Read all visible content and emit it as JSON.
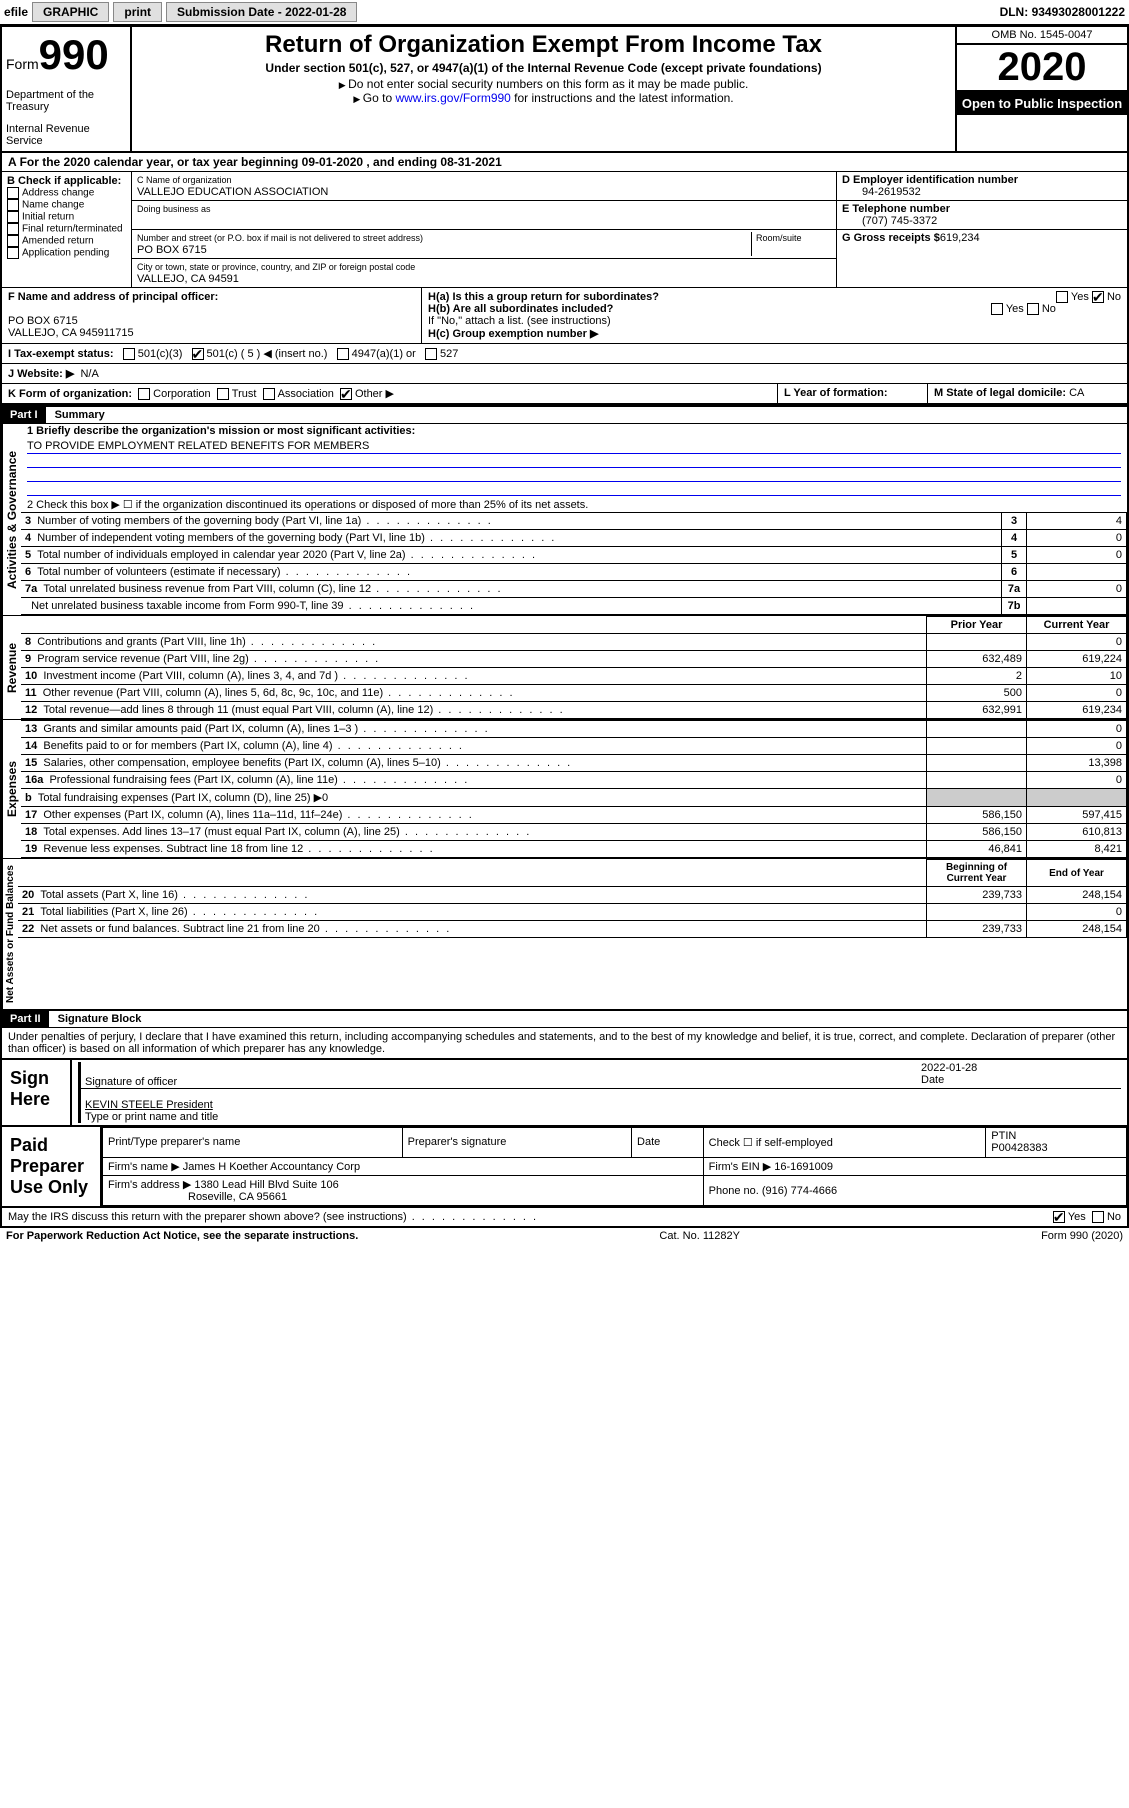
{
  "topbar": {
    "efile": "efile",
    "graphic": "GRAPHIC",
    "print": "print",
    "subdate_lbl": "Submission Date - ",
    "subdate": "2022-01-28",
    "dln_lbl": "DLN: ",
    "dln": "93493028001222"
  },
  "header": {
    "form": "Form",
    "num": "990",
    "dept": "Department of the Treasury",
    "irs": "Internal Revenue Service",
    "title": "Return of Organization Exempt From Income Tax",
    "sub": "Under section 501(c), 527, or 4947(a)(1) of the Internal Revenue Code (except private foundations)",
    "note1": "Do not enter social security numbers on this form as it may be made public.",
    "note2_pre": "Go to ",
    "note2_link": "www.irs.gov/Form990",
    "note2_post": " for instructions and the latest information.",
    "omb": "OMB No. 1545-0047",
    "year": "2020",
    "public": "Open to Public Inspection"
  },
  "period": {
    "text": "For the 2020 calendar year, or tax year beginning 09-01-2020    , and ending 08-31-2021"
  },
  "boxB": {
    "hdr": "B Check if applicable:",
    "items": [
      "Address change",
      "Name change",
      "Initial return",
      "Final return/terminated",
      "Amended return",
      "Application pending"
    ]
  },
  "boxC": {
    "name_lbl": "C Name of organization",
    "name": "VALLEJO EDUCATION ASSOCIATION",
    "dba": "Doing business as",
    "addr_lbl": "Number and street (or P.O. box if mail is not delivered to street address)",
    "room": "Room/suite",
    "addr": "PO BOX 6715",
    "city_lbl": "City or town, state or province, country, and ZIP or foreign postal code",
    "city": "VALLEJO, CA  94591"
  },
  "boxD": {
    "lbl": "D Employer identification number",
    "val": "94-2619532"
  },
  "boxE": {
    "lbl": "E Telephone number",
    "val": "(707) 745-3372"
  },
  "boxG": {
    "lbl": "G Gross receipts $",
    "val": "619,234"
  },
  "boxF": {
    "lbl": "F Name and address of principal officer:",
    "l1": "PO BOX 6715",
    "l2": "VALLEJO, CA  945911715"
  },
  "boxH": {
    "a": "H(a)  Is this a group return for subordinates?",
    "b": "H(b)  Are all subordinates included?",
    "bnote": "If \"No,\" attach a list. (see instructions)",
    "c": "H(c)  Group exemption number ▶",
    "yes": "Yes",
    "no": "No"
  },
  "rowI": {
    "lbl": "I   Tax-exempt status:",
    "opts": [
      "501(c)(3)",
      "501(c) ( 5 ) ◀ (insert no.)",
      "4947(a)(1) or",
      "527"
    ]
  },
  "rowJ": {
    "lbl": "J   Website: ▶",
    "val": "N/A"
  },
  "rowK": {
    "lbl": "K Form of organization:",
    "opts": [
      "Corporation",
      "Trust",
      "Association",
      "Other ▶"
    ]
  },
  "rowL": {
    "lbl": "L Year of formation:",
    "val": ""
  },
  "rowM": {
    "lbl": "M State of legal domicile: ",
    "val": "CA"
  },
  "part1": {
    "hdr": "Part I",
    "title": "Summary"
  },
  "governance": {
    "vt": "Activities & Governance",
    "l1": "1   Briefly describe the organization's mission or most significant activities:",
    "mission": "TO PROVIDE EMPLOYMENT RELATED BENEFITS FOR MEMBERS",
    "l2": "2   Check this box ▶ ☐  if the organization discontinued its operations or disposed of more than 25% of its net assets.",
    "rows": [
      {
        "n": "3",
        "t": "Number of voting members of the governing body (Part VI, line 1a)",
        "b": "3",
        "v": "4"
      },
      {
        "n": "4",
        "t": "Number of independent voting members of the governing body (Part VI, line 1b)",
        "b": "4",
        "v": "0"
      },
      {
        "n": "5",
        "t": "Total number of individuals employed in calendar year 2020 (Part V, line 2a)",
        "b": "5",
        "v": "0"
      },
      {
        "n": "6",
        "t": "Total number of volunteers (estimate if necessary)",
        "b": "6",
        "v": ""
      },
      {
        "n": "7a",
        "t": "Total unrelated business revenue from Part VIII, column (C), line 12",
        "b": "7a",
        "v": "0"
      },
      {
        "n": "",
        "t": "Net unrelated business taxable income from Form 990-T, line 39",
        "b": "7b",
        "v": ""
      }
    ]
  },
  "revenue": {
    "vt": "Revenue",
    "th1": "Prior Year",
    "th2": "Current Year",
    "rows": [
      {
        "n": "8",
        "t": "Contributions and grants (Part VIII, line 1h)",
        "p": "",
        "c": "0"
      },
      {
        "n": "9",
        "t": "Program service revenue (Part VIII, line 2g)",
        "p": "632,489",
        "c": "619,224"
      },
      {
        "n": "10",
        "t": "Investment income (Part VIII, column (A), lines 3, 4, and 7d )",
        "p": "2",
        "c": "10"
      },
      {
        "n": "11",
        "t": "Other revenue (Part VIII, column (A), lines 5, 6d, 8c, 9c, 10c, and 11e)",
        "p": "500",
        "c": "0"
      },
      {
        "n": "12",
        "t": "Total revenue—add lines 8 through 11 (must equal Part VIII, column (A), line 12)",
        "p": "632,991",
        "c": "619,234"
      }
    ]
  },
  "expenses": {
    "vt": "Expenses",
    "rows": [
      {
        "n": "13",
        "t": "Grants and similar amounts paid (Part IX, column (A), lines 1–3 )",
        "p": "",
        "c": "0"
      },
      {
        "n": "14",
        "t": "Benefits paid to or for members (Part IX, column (A), line 4)",
        "p": "",
        "c": "0"
      },
      {
        "n": "15",
        "t": "Salaries, other compensation, employee benefits (Part IX, column (A), lines 5–10)",
        "p": "",
        "c": "13,398"
      },
      {
        "n": "16a",
        "t": "Professional fundraising fees (Part IX, column (A), line 11e)",
        "p": "",
        "c": "0"
      },
      {
        "n": "b",
        "t": "Total fundraising expenses (Part IX, column (D), line 25) ▶0",
        "p": "shade",
        "c": "shade"
      },
      {
        "n": "17",
        "t": "Other expenses (Part IX, column (A), lines 11a–11d, 11f–24e)",
        "p": "586,150",
        "c": "597,415"
      },
      {
        "n": "18",
        "t": "Total expenses. Add lines 13–17 (must equal Part IX, column (A), line 25)",
        "p": "586,150",
        "c": "610,813"
      },
      {
        "n": "19",
        "t": "Revenue less expenses. Subtract line 18 from line 12",
        "p": "46,841",
        "c": "8,421"
      }
    ]
  },
  "netassets": {
    "vt": "Net Assets or Fund Balances",
    "th1": "Beginning of Current Year",
    "th2": "End of Year",
    "rows": [
      {
        "n": "20",
        "t": "Total assets (Part X, line 16)",
        "p": "239,733",
        "c": "248,154"
      },
      {
        "n": "21",
        "t": "Total liabilities (Part X, line 26)",
        "p": "",
        "c": "0"
      },
      {
        "n": "22",
        "t": "Net assets or fund balances. Subtract line 21 from line 20",
        "p": "239,733",
        "c": "248,154"
      }
    ]
  },
  "part2": {
    "hdr": "Part II",
    "title": "Signature Block",
    "decl": "Under penalties of perjury, I declare that I have examined this return, including accompanying schedules and statements, and to the best of my knowledge and belief, it is true, correct, and complete. Declaration of preparer (other than officer) is based on all information of which preparer has any knowledge."
  },
  "sign": {
    "lbl": "Sign Here",
    "sig": "Signature of officer",
    "date_lbl": "Date",
    "date": "2022-01-28",
    "name": "KEVIN STEELE  President",
    "name_lbl": "Type or print name and title"
  },
  "prep": {
    "lbl": "Paid Preparer Use Only",
    "h": [
      "Print/Type preparer's name",
      "Preparer's signature",
      "Date"
    ],
    "check": "Check ☐ if self-employed",
    "ptin_lbl": "PTIN",
    "ptin": "P00428383",
    "firm_lbl": "Firm's name   ▶",
    "firm": "James H Koether Accountancy Corp",
    "ein_lbl": "Firm's EIN ▶",
    "ein": "16-1691009",
    "addr_lbl": "Firm's address ▶",
    "addr1": "1380 Lead Hill Blvd Suite 106",
    "addr2": "Roseville, CA  95661",
    "phone_lbl": "Phone no.",
    "phone": "(916) 774-4666",
    "discuss": "May the IRS discuss this return with the preparer shown above? (see instructions)"
  },
  "foot": {
    "l": "For Paperwork Reduction Act Notice, see the separate instructions.",
    "c": "Cat. No. 11282Y",
    "r": "Form 990 (2020)"
  }
}
